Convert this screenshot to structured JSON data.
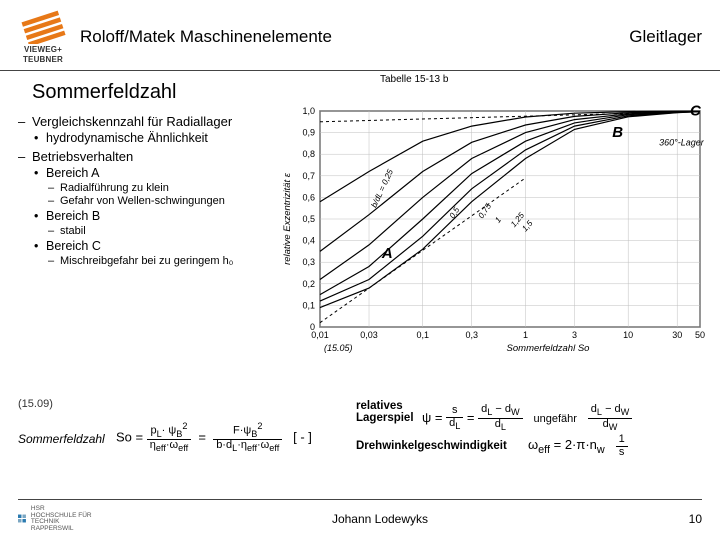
{
  "header": {
    "logo_text1": "VIEWEG+",
    "logo_text2": "TEUBNER",
    "title": "Roloff/Matek Maschinenelemente",
    "right": "Gleitlager"
  },
  "caption": "Tabelle 15-13 b",
  "section_title": "Sommerfeldzahl",
  "bullets": {
    "a": "Vergleichskennzahl für Radiallager",
    "a1": "hydrodynamische Ähnlichkeit",
    "b": "Betriebsverhalten",
    "b1": "Bereich A",
    "b1a": "Radialführung zu klein",
    "b1b": "Gefahr von Wellen-schwingungen",
    "b2": "Bereich B",
    "b2a": "stabil",
    "b3": "Bereich C",
    "b3a": "Mischreibgefahr bei zu geringem h₀"
  },
  "chart": {
    "x_ticks": [
      "0,01",
      "0,03",
      "0,1",
      "0,3",
      "1",
      "3",
      "10",
      "30",
      "50"
    ],
    "y_ticks": [
      "0",
      "0,1",
      "0,2",
      "0,3",
      "0,4",
      "0,5",
      "0,6",
      "0,7",
      "0,8",
      "0,9",
      "1,0"
    ],
    "x_label": "Sommerfeldzahl So",
    "y_label": "relative Exzentrizität ε",
    "region_A": "A",
    "region_B": "B",
    "region_C": "C",
    "lager_label": "360°-Lager",
    "curve_labels": [
      "b/dL = 0,25",
      "0,5",
      "0,75",
      "1",
      "1,25",
      "1,5"
    ],
    "eqref": "(15.05)",
    "bg": "#ffffff",
    "axis_color": "#000000",
    "grid_color": "#bfbfbf",
    "curve_color": "#000000",
    "curve_width": 1.2,
    "curves": [
      [
        [
          0.01,
          0.58
        ],
        [
          0.03,
          0.72
        ],
        [
          0.1,
          0.86
        ],
        [
          0.3,
          0.93
        ],
        [
          1,
          0.972
        ],
        [
          3,
          0.99
        ],
        [
          10,
          0.997
        ],
        [
          30,
          0.999
        ],
        [
          50,
          0.9995
        ]
      ],
      [
        [
          0.01,
          0.35
        ],
        [
          0.03,
          0.52
        ],
        [
          0.1,
          0.72
        ],
        [
          0.3,
          0.855
        ],
        [
          1,
          0.935
        ],
        [
          3,
          0.975
        ],
        [
          10,
          0.992
        ],
        [
          30,
          0.998
        ],
        [
          50,
          0.999
        ]
      ],
      [
        [
          0.01,
          0.22
        ],
        [
          0.03,
          0.38
        ],
        [
          0.1,
          0.6
        ],
        [
          0.3,
          0.78
        ],
        [
          1,
          0.9
        ],
        [
          3,
          0.96
        ],
        [
          10,
          0.987
        ],
        [
          30,
          0.996
        ],
        [
          50,
          0.998
        ]
      ],
      [
        [
          0.01,
          0.15
        ],
        [
          0.03,
          0.28
        ],
        [
          0.1,
          0.5
        ],
        [
          0.3,
          0.71
        ],
        [
          1,
          0.86
        ],
        [
          3,
          0.945
        ],
        [
          10,
          0.983
        ],
        [
          30,
          0.995
        ],
        [
          50,
          0.998
        ]
      ],
      [
        [
          0.01,
          0.12
        ],
        [
          0.03,
          0.22
        ],
        [
          0.1,
          0.42
        ],
        [
          0.3,
          0.64
        ],
        [
          1,
          0.82
        ],
        [
          3,
          0.93
        ],
        [
          10,
          0.978
        ],
        [
          30,
          0.993
        ],
        [
          50,
          0.997
        ]
      ],
      [
        [
          0.01,
          0.09
        ],
        [
          0.03,
          0.18
        ],
        [
          0.1,
          0.36
        ],
        [
          0.3,
          0.58
        ],
        [
          1,
          0.78
        ],
        [
          3,
          0.915
        ],
        [
          10,
          0.973
        ],
        [
          30,
          0.992
        ],
        [
          50,
          0.997
        ]
      ]
    ],
    "boundary_A": [
      [
        0.01,
        0.02
      ],
      [
        1,
        0.69
      ]
    ],
    "boundary_C": [
      [
        0.01,
        0.95
      ],
      [
        50,
        0.998
      ]
    ]
  },
  "formulas": {
    "eqnum": "(15.09)",
    "label": "Sommerfeldzahl",
    "rel_label": "relatives\nLagerspiel",
    "drehw_label": "Drehwinkelgeschwindigkeit",
    "unit_dimless": "[ - ]",
    "ungef": "ungefähr",
    "omega_unit": "[1/s]"
  },
  "footer": {
    "school": "HOCHSCHULE FÜR TECHNIK RAPPERSWIL",
    "author": "Johann Lodewyks",
    "page": "10"
  }
}
